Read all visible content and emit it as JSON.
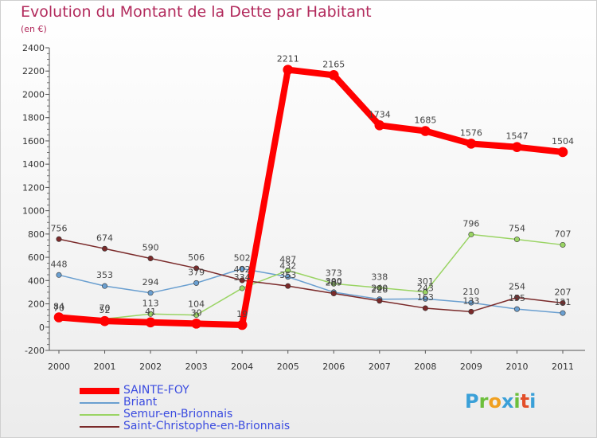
{
  "header": {
    "title": "Evolution du Montant de la Dette par Habitant",
    "subtitle": "(en €)"
  },
  "logo": {
    "letters": [
      "P",
      "r",
      "o",
      "x",
      "i",
      "t",
      "i"
    ],
    "colors": [
      "#3aa0d8",
      "#6cbf3c",
      "#f0a020",
      "#3aa0d8",
      "#6cbf3c",
      "#e34f2a",
      "#3aa0d8"
    ]
  },
  "chart_data": {
    "type": "line",
    "title": "Evolution du Montant de la Dette par Habitant",
    "ylabel": "(en €)",
    "ylim": [
      -200,
      2400
    ],
    "yticks": [
      -200,
      0,
      200,
      400,
      600,
      800,
      1000,
      1200,
      1400,
      1600,
      1800,
      2000,
      2200,
      2400
    ],
    "x": [
      "2000",
      "2001",
      "2002",
      "2003",
      "2004",
      "2005",
      "2006",
      "2007",
      "2008",
      "2009",
      "2010",
      "2011"
    ],
    "grid": false,
    "legend": "bottom-left",
    "series": [
      {
        "name": "SAINTE-FOY",
        "color": "#ff0000",
        "width": 8,
        "values": [
          84,
          52,
          41,
          30,
          19,
          2211,
          2165,
          1734,
          1685,
          1576,
          1547,
          1504
        ],
        "labels": [
          "84",
          "52",
          "41",
          "30",
          "19",
          "2211",
          "2165",
          "1734",
          "1685",
          "1576",
          "1547",
          "1504"
        ]
      },
      {
        "name": "Briant",
        "color": "#6a9fd0",
        "width": 1.5,
        "values": [
          448,
          353,
          294,
          379,
          502,
          432,
          300,
          240,
          243,
          210,
          155,
          121
        ],
        "labels": [
          "448",
          "353",
          "294",
          "379",
          "502",
          "432",
          "300",
          "240",
          "243",
          "210",
          "155",
          "121"
        ]
      },
      {
        "name": "Semur-en-Brionnais",
        "color": "#9ad464",
        "width": 1.5,
        "values": [
          70,
          70,
          113,
          104,
          334,
          487,
          373,
          338,
          301,
          796,
          754,
          707
        ],
        "labels": [
          "70",
          "70",
          "113",
          "104",
          "334",
          "487",
          "373",
          "338",
          "301",
          "796",
          "754",
          "707"
        ]
      },
      {
        "name": "Saint-Christophe-en-Brionnais",
        "color": "#7a2a2a",
        "width": 1.5,
        "values": [
          756,
          674,
          590,
          506,
          402,
          353,
          289,
          226,
          163,
          133,
          254,
          207
        ],
        "labels": [
          "756",
          "674",
          "590",
          "506",
          "402",
          "353",
          "289",
          "226",
          "163",
          "133",
          "254",
          "207"
        ]
      }
    ]
  }
}
